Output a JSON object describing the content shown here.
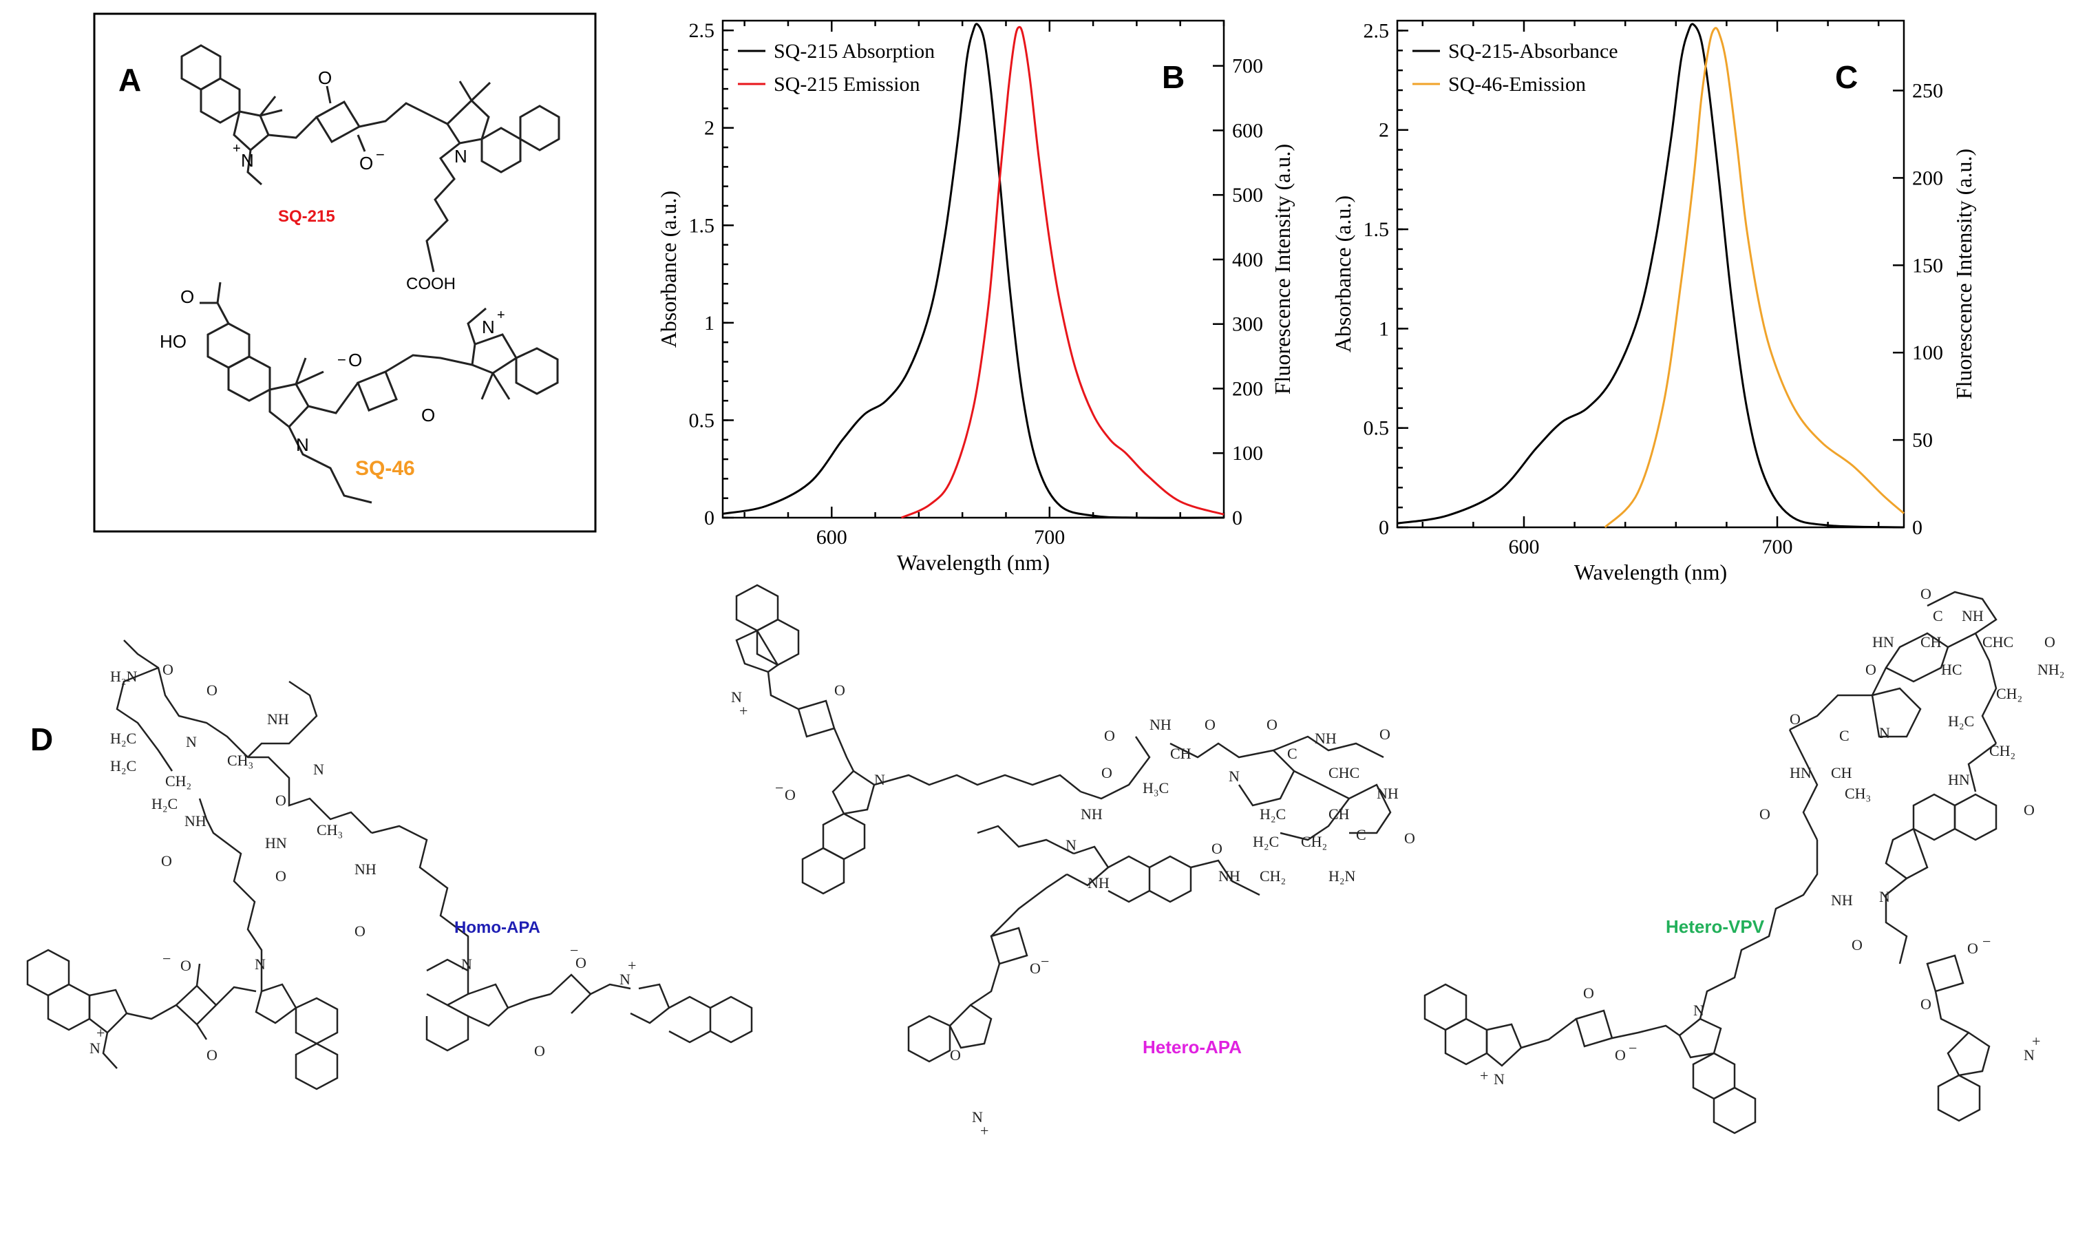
{
  "panel_labels": {
    "a": "A",
    "b": "B",
    "c": "C",
    "d": "D"
  },
  "compounds": {
    "sq215": {
      "name": "SQ-215",
      "color": "#e8161b",
      "cooh": "COOH"
    },
    "sq46": {
      "name": "SQ-46",
      "color": "#f59a23",
      "ho": "HO"
    }
  },
  "atom_labels": {
    "O": "O",
    "N": "N",
    "NH": "NH",
    "HN": "HN",
    "H2N": "H₂N",
    "NH2": "NH₂",
    "H2C": "H₂C",
    "CH2": "CH₂",
    "CH3": "CH₃",
    "H3C": "H₃C",
    "C": "C",
    "CH": "CH",
    "HC": "HC",
    "CHC": "CHC",
    "CHC_h": "CHC",
    "minus": "−",
    "plus": "+"
  },
  "conjugates": {
    "homo": {
      "name": "Homo-APA",
      "color": "#1f1fb4"
    },
    "hetero_apa": {
      "name": "Hetero-APA",
      "color": "#e021e0"
    },
    "hetero_vpv": {
      "name": "Hetero-VPV",
      "color": "#22b05a"
    }
  },
  "chart_data": [
    {
      "type": "line",
      "panel": "B",
      "xlabel": "Wavelength (nm)",
      "ylabel": "Absorbance (a.u.)",
      "y2label": "Fluorescence Intensity (a.u.)",
      "xlim": [
        550,
        780
      ],
      "ylim": [
        0,
        2.55
      ],
      "y2lim": [
        0,
        770
      ],
      "xticks": [
        "600",
        "700"
      ],
      "yticks": [
        "0",
        "0.5",
        "1",
        "1.5",
        "2",
        "2.5"
      ],
      "y2ticks": [
        "0",
        "100",
        "200",
        "300",
        "400",
        "500",
        "600",
        "700"
      ],
      "legend_position": "top-left",
      "series": [
        {
          "name": "SQ-215 Absorption",
          "axis": "left",
          "color": "#000000",
          "x": [
            550,
            570,
            590,
            605,
            615,
            625,
            635,
            645,
            652,
            658,
            662,
            665,
            667,
            670,
            673,
            677,
            682,
            688,
            695,
            705,
            720,
            740,
            780
          ],
          "y": [
            0.02,
            0.06,
            0.18,
            0.4,
            0.53,
            0.6,
            0.75,
            1.05,
            1.45,
            1.95,
            2.35,
            2.5,
            2.53,
            2.45,
            2.2,
            1.75,
            1.15,
            0.6,
            0.25,
            0.06,
            0.01,
            0.0,
            0.0
          ]
        },
        {
          "name": "SQ-215 Emission",
          "axis": "right",
          "color": "#e8161b",
          "x": [
            632,
            645,
            655,
            665,
            672,
            677,
            681,
            684,
            686,
            688,
            691,
            695,
            700,
            705,
            712,
            720,
            728,
            735,
            745,
            760,
            780
          ],
          "y": [
            0,
            20,
            60,
            170,
            330,
            520,
            660,
            740,
            760,
            745,
            680,
            560,
            430,
            330,
            230,
            160,
            120,
            100,
            65,
            25,
            5
          ]
        }
      ]
    },
    {
      "type": "line",
      "panel": "C",
      "xlabel": "Wavelength (nm)",
      "ylabel": "Absorbance (a.u.)",
      "y2label": "Fluorescence Intensity (a.u.)",
      "xlim": [
        550,
        750
      ],
      "ylim": [
        0,
        2.55
      ],
      "y2lim": [
        0,
        290
      ],
      "xticks": [
        "600",
        "700"
      ],
      "yticks": [
        "0",
        "0.5",
        "1",
        "1.5",
        "2",
        "2.5"
      ],
      "y2ticks": [
        "0",
        "50",
        "100",
        "150",
        "200",
        "250"
      ],
      "legend_position": "top-left",
      "series": [
        {
          "name": "SQ-215-Absorbance",
          "axis": "left",
          "color": "#000000",
          "x": [
            550,
            570,
            590,
            605,
            615,
            625,
            635,
            645,
            652,
            658,
            662,
            665,
            667,
            670,
            673,
            677,
            682,
            688,
            695,
            705,
            720,
            750
          ],
          "y": [
            0.02,
            0.06,
            0.18,
            0.4,
            0.53,
            0.6,
            0.75,
            1.05,
            1.45,
            1.95,
            2.35,
            2.5,
            2.53,
            2.45,
            2.2,
            1.75,
            1.15,
            0.6,
            0.25,
            0.06,
            0.01,
            0.0
          ]
        },
        {
          "name": "SQ-46-Emission",
          "axis": "right",
          "color": "#f0a32a",
          "x": [
            632,
            645,
            655,
            662,
            667,
            670,
            673,
            675,
            677,
            680,
            684,
            688,
            694,
            700,
            708,
            718,
            730,
            742,
            750
          ],
          "y": [
            0,
            20,
            70,
            140,
            200,
            245,
            275,
            285,
            283,
            265,
            220,
            170,
            120,
            90,
            65,
            48,
            35,
            18,
            8
          ]
        }
      ]
    }
  ]
}
